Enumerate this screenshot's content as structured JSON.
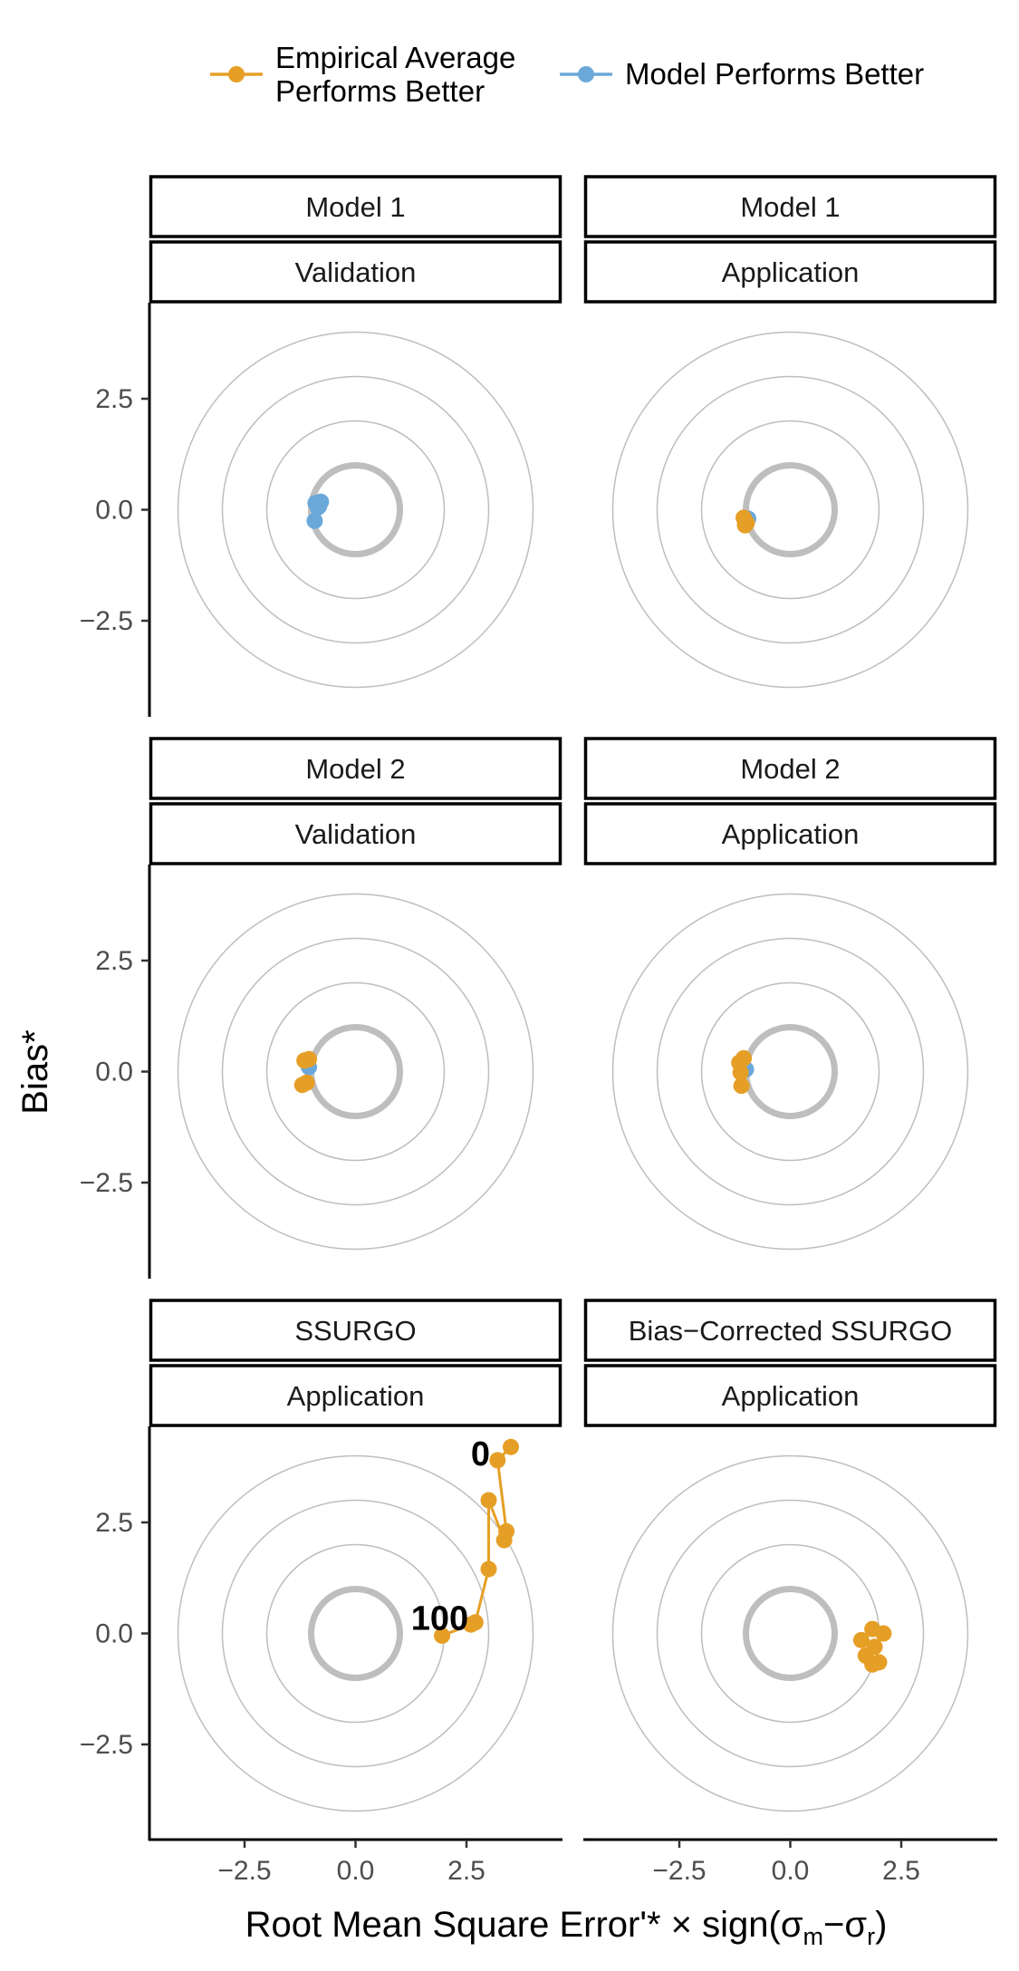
{
  "chart_data": {
    "type": "scatter",
    "subtype": "target-diagram",
    "xlabel": "Root Mean Square Error'* × sign(σm−σr)",
    "xlabel_parts": {
      "main": "Root Mean Square Error'* × sign(σ",
      "sub1": "m",
      "mid": "−σ",
      "sub2": "r",
      "end": ")"
    },
    "ylabel": "Bias*",
    "xlim": [
      -4.7,
      4.7
    ],
    "ylim": [
      -4.7,
      4.7
    ],
    "x_ticks": [
      -2.5,
      0,
      2.5
    ],
    "x_tick_labels": [
      "−2.5",
      "0.0",
      "2.5"
    ],
    "y_ticks": [
      2.5,
      0,
      -2.5
    ],
    "y_tick_labels": [
      "2.5",
      "0.0",
      "−2.5"
    ],
    "reference_circle_radii": [
      2,
      3,
      4
    ],
    "threshold_circle_radius": 1,
    "legend": {
      "position": "top",
      "entries": [
        {
          "label_lines": [
            "Empirical Average",
            "Performs Better"
          ],
          "color": "#E69F26"
        },
        {
          "label_lines": [
            "Model Performs Better"
          ],
          "color": "#6AA8DA"
        }
      ]
    },
    "colors": {
      "empirical": "#E69F26",
      "model": "#6AA8DA",
      "threshold_circle": "#bebebe",
      "reference_circle": "#bebebe"
    },
    "panels": [
      {
        "strip_top": "Model 1",
        "strip_bottom": "Validation",
        "points": [
          {
            "x": -0.85,
            "y": 0.05,
            "g": "model"
          },
          {
            "x": -0.9,
            "y": 0.15,
            "g": "model"
          },
          {
            "x": -0.78,
            "y": 0.18,
            "g": "model"
          },
          {
            "x": -0.82,
            "y": 0.08,
            "g": "model"
          },
          {
            "x": -0.92,
            "y": -0.25,
            "g": "model"
          }
        ]
      },
      {
        "strip_top": "Model 1",
        "strip_bottom": "Application",
        "points": [
          {
            "x": -0.95,
            "y": -0.2,
            "g": "model"
          },
          {
            "x": -1.05,
            "y": -0.18,
            "g": "empirical"
          },
          {
            "x": -1.02,
            "y": -0.35,
            "g": "empirical"
          },
          {
            "x": -0.98,
            "y": -0.3,
            "g": "empirical"
          }
        ]
      },
      {
        "strip_top": "Model 2",
        "strip_bottom": "Validation",
        "points": [
          {
            "x": -1.05,
            "y": 0.1,
            "g": "model"
          },
          {
            "x": -1.15,
            "y": 0.25,
            "g": "empirical"
          },
          {
            "x": -1.05,
            "y": 0.28,
            "g": "empirical"
          },
          {
            "x": -1.2,
            "y": -0.3,
            "g": "empirical"
          },
          {
            "x": -1.1,
            "y": -0.25,
            "g": "empirical"
          }
        ]
      },
      {
        "strip_top": "Model 2",
        "strip_bottom": "Application",
        "points": [
          {
            "x": -1.0,
            "y": 0.05,
            "g": "model"
          },
          {
            "x": -1.15,
            "y": 0.2,
            "g": "empirical"
          },
          {
            "x": -1.05,
            "y": 0.3,
            "g": "empirical"
          },
          {
            "x": -1.12,
            "y": -0.02,
            "g": "empirical"
          },
          {
            "x": -1.1,
            "y": -0.32,
            "g": "empirical"
          }
        ]
      },
      {
        "strip_top": "SSURGO",
        "strip_bottom": "Application",
        "connected": true,
        "points": [
          {
            "x": 3.5,
            "y": 4.2,
            "g": "empirical"
          },
          {
            "x": 3.2,
            "y": 3.9,
            "g": "empirical"
          },
          {
            "x": 3.4,
            "y": 2.3,
            "g": "empirical"
          },
          {
            "x": 3.35,
            "y": 2.1,
            "g": "empirical"
          },
          {
            "x": 3.0,
            "y": 3.0,
            "g": "empirical"
          },
          {
            "x": 3.0,
            "y": 1.45,
            "g": "empirical"
          },
          {
            "x": 2.7,
            "y": 0.25,
            "g": "empirical"
          },
          {
            "x": 2.6,
            "y": 0.2,
            "g": "empirical"
          },
          {
            "x": 1.95,
            "y": -0.05,
            "g": "empirical"
          }
        ],
        "annotations": [
          {
            "text": "0",
            "x": 2.6,
            "y": 4.05
          },
          {
            "text": "100",
            "x": 1.25,
            "y": 0.35
          }
        ]
      },
      {
        "strip_top": "Bias−Corrected SSURGO",
        "strip_bottom": "Application",
        "points": [
          {
            "x": 1.6,
            "y": -0.15,
            "g": "empirical"
          },
          {
            "x": 1.85,
            "y": 0.1,
            "g": "empirical"
          },
          {
            "x": 1.9,
            "y": -0.3,
            "g": "empirical"
          },
          {
            "x": 2.1,
            "y": 0.0,
            "g": "empirical"
          },
          {
            "x": 1.7,
            "y": -0.5,
            "g": "empirical"
          },
          {
            "x": 2.0,
            "y": -0.65,
            "g": "empirical"
          },
          {
            "x": 1.85,
            "y": -0.7,
            "g": "empirical"
          }
        ]
      }
    ]
  }
}
